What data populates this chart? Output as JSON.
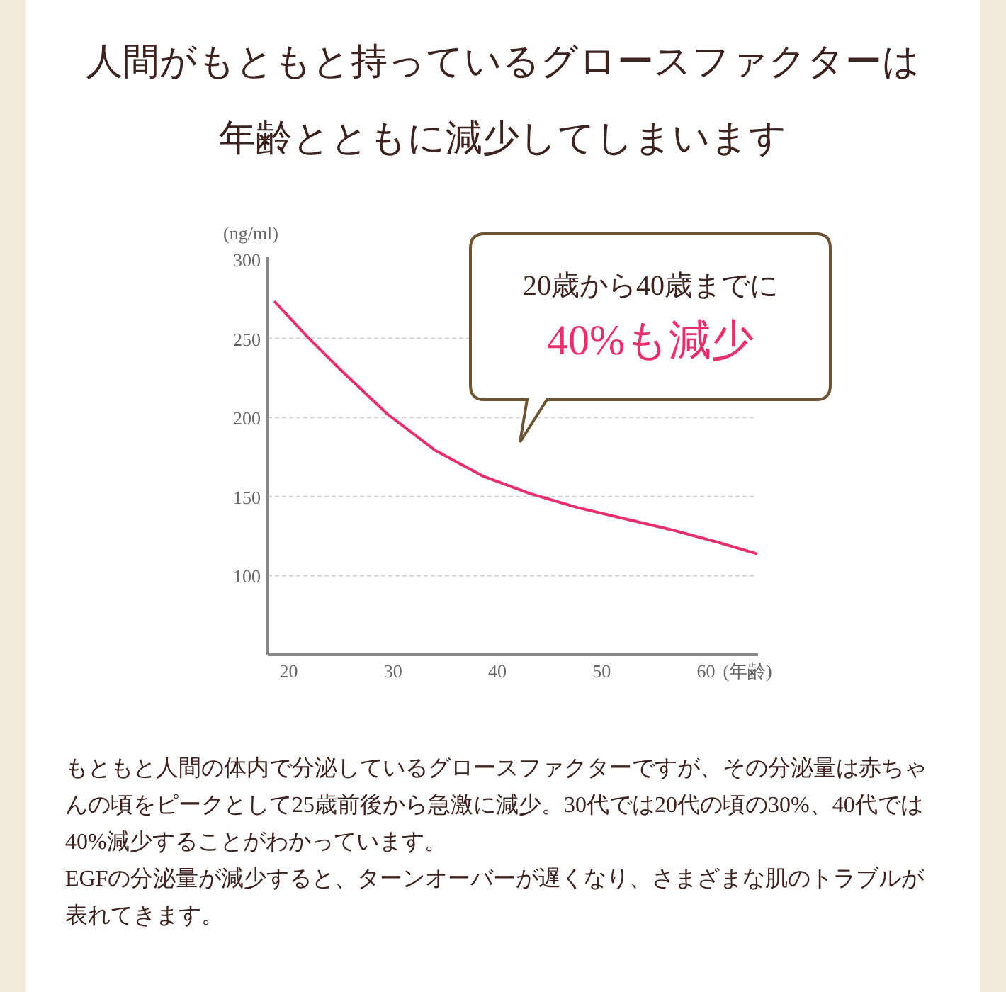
{
  "chart_data": {
    "type": "line",
    "title": "人間がもともと持っているグロースファクターは",
    "subtitle": "年齢とともに減少してしまいます",
    "ylabel": "(ng/ml)",
    "xlabel": "(年齢)",
    "x": [
      18.7,
      21.8,
      25,
      29.5,
      34.1,
      38.6,
      43.1,
      47.7,
      52.2,
      56.7,
      61.2,
      64.8
    ],
    "series": [
      {
        "color": "#e5306c",
        "values": [
          273,
          251,
          230,
          202,
          179,
          163,
          152,
          143,
          136,
          129,
          121,
          114
        ]
      }
    ],
    "xlim": [
      18,
      65
    ],
    "xticks": [
      20,
      30,
      40,
      50,
      60
    ],
    "ylim": [
      50,
      300
    ],
    "yticks": [
      100,
      150,
      200,
      250,
      300
    ],
    "grid": "y",
    "marker": "none",
    "line_style": "solid",
    "annotations": [
      "20歳から40歳までに",
      "40%も減少",
      "もともと人間の体内で分泌しているグロースファクターですが、その分泌量は赤ちゃんの頃をピークとして25歳前後から急激に減少。30代では20代の頃の30%、40代では40%減少することがわかっています。",
      "EGFの分泌量が減少すると、ターンオーバーが遅くなり、さまざまな肌のトラブルが表れてきます。"
    ]
  }
}
